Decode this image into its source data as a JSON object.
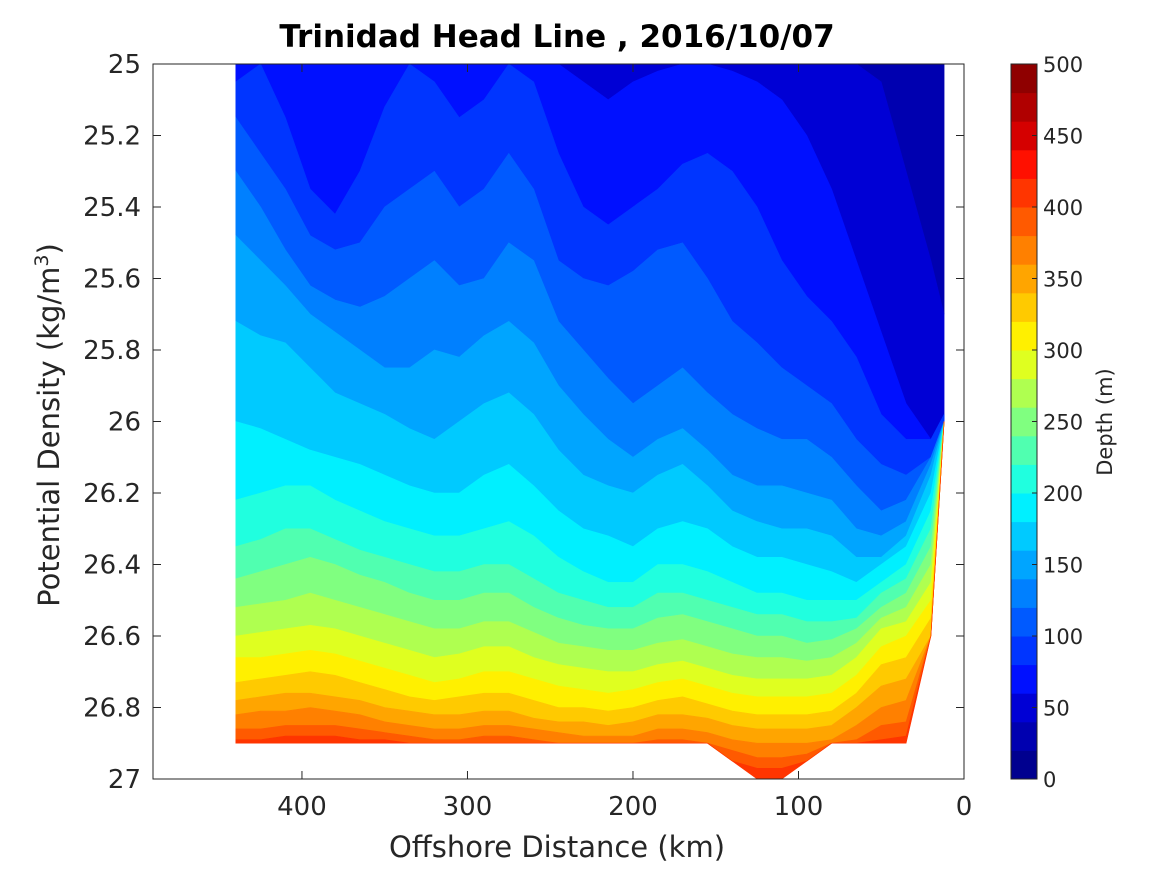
{
  "chart_data": {
    "type": "heatmap",
    "subtype": "filled-contour",
    "title": "Trinidad Head Line , 2016/10/07",
    "xlabel": "Offshore Distance (km)",
    "ylabel": "Potential Density (kg/m",
    "ylabel_superscript": "3",
    "ylabel_close": ")",
    "xlim": [
      490,
      0
    ],
    "ylim": [
      27,
      25
    ],
    "x_reversed": true,
    "y_reversed": true,
    "xticks": [
      400,
      300,
      200,
      100,
      0
    ],
    "xtick_labels": [
      "400",
      "300",
      "200",
      "100",
      "0"
    ],
    "yticks": [
      25,
      25.2,
      25.4,
      25.6,
      25.8,
      26,
      26.2,
      26.4,
      26.6,
      26.8,
      27
    ],
    "ytick_labels": [
      "25",
      "25.2",
      "25.4",
      "25.6",
      "25.8",
      "26",
      "26.2",
      "26.4",
      "26.6",
      "26.8",
      "27"
    ],
    "colorbar": {
      "label": "Depth (m)",
      "range": [
        0,
        500
      ],
      "ticks": [
        0,
        50,
        100,
        150,
        200,
        250,
        300,
        350,
        400,
        450,
        500
      ],
      "tick_labels": [
        "0",
        "50",
        "100",
        "150",
        "200",
        "250",
        "300",
        "350",
        "400",
        "450",
        "500"
      ],
      "colormap": "jet",
      "levels": [
        0,
        25,
        50,
        75,
        100,
        125,
        150,
        175,
        200,
        225,
        250,
        275,
        300,
        325,
        350,
        375,
        400,
        425,
        450,
        475,
        500
      ]
    },
    "level_colors": [
      "#00008f",
      "#0000b0",
      "#0000d5",
      "#0010ff",
      "#0035ff",
      "#005aff",
      "#0080ff",
      "#00a5ff",
      "#00caff",
      "#00f0ff",
      "#20ffdf",
      "#50ffb0",
      "#80ff80",
      "#afff50",
      "#dfff20",
      "#fff000",
      "#ffca00",
      "#ffa500",
      "#ff8000",
      "#ff5a00",
      "#ff3500",
      "#ff1000",
      "#d50000",
      "#b00000",
      "#8f0000"
    ],
    "offshore_distance_km": [
      440,
      425,
      410,
      395,
      380,
      365,
      350,
      335,
      320,
      305,
      290,
      275,
      260,
      245,
      230,
      215,
      200,
      185,
      170,
      155,
      140,
      125,
      110,
      95,
      80,
      65,
      50,
      35,
      20,
      12
    ],
    "density_top_kgm3": [
      25.0,
      25.0,
      25.0,
      25.0,
      25.0,
      25.0,
      25.0,
      25.0,
      25.0,
      25.0,
      25.0,
      25.0,
      25.0,
      25.0,
      25.0,
      25.0,
      25.0,
      25.0,
      25.0,
      25.0,
      25.0,
      25.0,
      25.0,
      25.0,
      25.0,
      25.0,
      25.0,
      25.0,
      25.0,
      25.0
    ],
    "density_bottom_kgm3": [
      26.9,
      26.9,
      26.9,
      26.9,
      26.9,
      26.9,
      26.9,
      26.9,
      26.9,
      26.9,
      26.9,
      26.9,
      26.9,
      26.9,
      26.9,
      26.9,
      26.9,
      26.9,
      26.9,
      26.9,
      26.95,
      27.0,
      27.0,
      26.95,
      26.9,
      26.9,
      26.9,
      26.9,
      26.6,
      26.0
    ],
    "contour_depth_levels_m": [
      25,
      50,
      75,
      100,
      125,
      150,
      175,
      200,
      225,
      250,
      275,
      300,
      325,
      350,
      375,
      400,
      425,
      450,
      475
    ],
    "isopycnal_of_contour_kgm3": [
      [
        24.9,
        24.9,
        24.9,
        24.9,
        24.9,
        24.9,
        24.9,
        24.9,
        24.9,
        24.9,
        24.9,
        24.9,
        24.9,
        24.9,
        24.9,
        24.9,
        24.9,
        24.9,
        24.9,
        24.9,
        24.9,
        24.9,
        24.9,
        24.9,
        24.9,
        24.95,
        25.05,
        25.3,
        25.55,
        25.7
      ],
      [
        24.95,
        24.95,
        24.95,
        25.0,
        25.0,
        25.0,
        24.95,
        24.95,
        24.95,
        24.95,
        24.95,
        24.95,
        24.95,
        24.98,
        25.05,
        25.1,
        25.05,
        25.02,
        25.0,
        25.0,
        25.02,
        25.05,
        25.1,
        25.2,
        25.35,
        25.55,
        25.75,
        25.95,
        26.05,
        26.0
      ],
      [
        25.05,
        25.0,
        25.15,
        25.35,
        25.42,
        25.3,
        25.12,
        25.0,
        25.05,
        25.15,
        25.1,
        25.0,
        25.05,
        25.25,
        25.4,
        25.45,
        25.4,
        25.35,
        25.28,
        25.25,
        25.3,
        25.4,
        25.55,
        25.65,
        25.72,
        25.82,
        25.98,
        26.05,
        26.05,
        25.98
      ],
      [
        25.15,
        25.25,
        25.35,
        25.48,
        25.52,
        25.5,
        25.4,
        25.35,
        25.3,
        25.4,
        25.35,
        25.25,
        25.35,
        25.55,
        25.6,
        25.62,
        25.58,
        25.52,
        25.5,
        25.6,
        25.72,
        25.78,
        25.85,
        25.9,
        25.95,
        26.05,
        26.12,
        26.15,
        26.1,
        26.0
      ],
      [
        25.3,
        25.4,
        25.52,
        25.62,
        25.66,
        25.68,
        25.65,
        25.6,
        25.55,
        25.62,
        25.6,
        25.5,
        25.55,
        25.72,
        25.8,
        25.88,
        25.95,
        25.9,
        25.85,
        25.92,
        25.98,
        26.02,
        26.05,
        26.05,
        26.1,
        26.18,
        26.25,
        26.22,
        26.1,
        26.0
      ],
      [
        25.48,
        25.55,
        25.62,
        25.7,
        25.75,
        25.8,
        25.85,
        25.85,
        25.8,
        25.82,
        25.76,
        25.72,
        25.78,
        25.9,
        25.98,
        26.05,
        26.1,
        26.05,
        26.02,
        26.08,
        26.15,
        26.18,
        26.18,
        26.2,
        26.22,
        26.3,
        26.32,
        26.28,
        26.12,
        26.0
      ],
      [
        25.72,
        25.76,
        25.78,
        25.85,
        25.92,
        25.95,
        25.98,
        26.02,
        26.05,
        26.0,
        25.95,
        25.92,
        25.98,
        26.08,
        26.15,
        26.18,
        26.2,
        26.15,
        26.12,
        26.18,
        26.25,
        26.28,
        26.3,
        26.3,
        26.32,
        26.38,
        26.38,
        26.32,
        26.15,
        26.0
      ],
      [
        26.0,
        26.02,
        26.05,
        26.08,
        26.1,
        26.12,
        26.15,
        26.18,
        26.2,
        26.2,
        26.15,
        26.12,
        26.18,
        26.25,
        26.3,
        26.32,
        26.35,
        26.3,
        26.28,
        26.3,
        26.35,
        26.38,
        26.38,
        26.4,
        26.42,
        26.45,
        26.4,
        26.35,
        26.2,
        26.0
      ],
      [
        26.22,
        26.2,
        26.18,
        26.18,
        26.22,
        26.25,
        26.28,
        26.3,
        26.32,
        26.32,
        26.3,
        26.28,
        26.32,
        26.38,
        26.42,
        26.45,
        26.45,
        26.4,
        26.4,
        26.42,
        26.45,
        26.48,
        26.48,
        26.5,
        26.5,
        26.5,
        26.45,
        26.4,
        26.25,
        26.05
      ],
      [
        26.35,
        26.33,
        26.3,
        26.3,
        26.33,
        26.36,
        26.38,
        26.4,
        26.42,
        26.42,
        26.4,
        26.4,
        26.44,
        26.48,
        26.5,
        26.52,
        26.52,
        26.48,
        26.48,
        26.5,
        26.52,
        26.54,
        26.54,
        26.56,
        26.56,
        26.55,
        26.48,
        26.44,
        26.3,
        26.05
      ],
      [
        26.44,
        26.42,
        26.4,
        26.38,
        26.4,
        26.43,
        26.45,
        26.48,
        26.5,
        26.5,
        26.48,
        26.48,
        26.52,
        26.55,
        26.57,
        26.58,
        26.58,
        26.55,
        26.54,
        26.56,
        26.58,
        26.6,
        26.6,
        26.62,
        26.61,
        26.58,
        26.52,
        26.48,
        26.35,
        26.05
      ],
      [
        26.52,
        26.51,
        26.5,
        26.48,
        26.5,
        26.52,
        26.54,
        26.56,
        26.58,
        26.58,
        26.56,
        26.56,
        26.59,
        26.62,
        26.63,
        26.64,
        26.64,
        26.62,
        26.61,
        26.63,
        26.65,
        26.66,
        26.66,
        26.67,
        26.66,
        26.62,
        26.55,
        26.52,
        26.4,
        26.05
      ],
      [
        26.6,
        26.59,
        26.58,
        26.57,
        26.58,
        26.6,
        26.62,
        26.64,
        26.66,
        26.65,
        26.63,
        26.63,
        26.66,
        26.68,
        26.69,
        26.7,
        26.7,
        26.68,
        26.67,
        26.69,
        26.71,
        26.72,
        26.72,
        26.72,
        26.71,
        26.66,
        26.58,
        26.56,
        26.45,
        26.05
      ],
      [
        26.66,
        26.66,
        26.65,
        26.64,
        26.65,
        26.67,
        26.69,
        26.71,
        26.73,
        26.72,
        26.7,
        26.7,
        26.72,
        26.74,
        26.75,
        26.76,
        26.75,
        26.73,
        26.72,
        26.74,
        26.76,
        26.77,
        26.77,
        26.77,
        26.76,
        26.71,
        26.63,
        26.6,
        26.5,
        26.05
      ],
      [
        26.73,
        26.72,
        26.71,
        26.7,
        26.71,
        26.73,
        26.75,
        26.77,
        26.78,
        26.77,
        26.76,
        26.76,
        26.78,
        26.8,
        26.8,
        26.81,
        26.8,
        26.78,
        26.77,
        26.79,
        26.81,
        26.82,
        26.82,
        26.82,
        26.81,
        26.76,
        26.68,
        26.66,
        26.55,
        26.05
      ],
      [
        26.78,
        26.77,
        26.76,
        26.76,
        26.77,
        26.78,
        26.8,
        26.81,
        26.82,
        26.82,
        26.81,
        26.81,
        26.83,
        26.84,
        26.84,
        26.85,
        26.84,
        26.82,
        26.82,
        26.83,
        26.85,
        26.86,
        26.86,
        26.86,
        26.85,
        26.8,
        26.74,
        26.72,
        26.6,
        26.05
      ],
      [
        26.82,
        26.81,
        26.81,
        26.8,
        26.81,
        26.82,
        26.84,
        26.85,
        26.86,
        26.86,
        26.85,
        26.85,
        26.86,
        26.87,
        26.88,
        26.88,
        26.88,
        26.86,
        26.86,
        26.87,
        26.89,
        26.9,
        26.9,
        26.9,
        26.89,
        26.85,
        26.8,
        26.78,
        26.6,
        26.05
      ],
      [
        26.86,
        26.86,
        26.85,
        26.85,
        26.85,
        26.86,
        26.87,
        26.88,
        26.89,
        26.89,
        26.88,
        26.88,
        26.89,
        26.9,
        26.9,
        26.9,
        26.9,
        26.89,
        26.89,
        26.9,
        26.92,
        26.94,
        26.94,
        26.93,
        26.92,
        26.89,
        26.85,
        26.84,
        26.6,
        26.05
      ],
      [
        26.89,
        26.89,
        26.88,
        26.88,
        26.88,
        26.89,
        26.89,
        26.9,
        26.9,
        26.9,
        26.9,
        26.9,
        26.9,
        26.9,
        26.9,
        26.9,
        26.9,
        26.9,
        26.9,
        26.92,
        26.95,
        26.97,
        26.97,
        26.96,
        26.94,
        26.9,
        26.89,
        26.88,
        26.6,
        26.05
      ]
    ]
  }
}
